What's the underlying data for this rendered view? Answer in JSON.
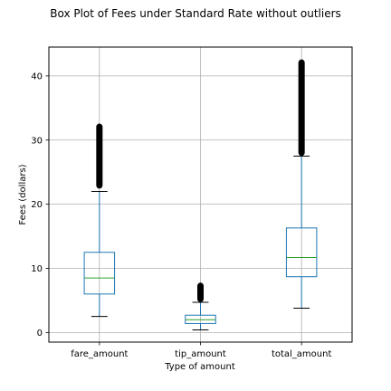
{
  "chart_data": {
    "type": "box",
    "title": "Box Plot of Fees under Standard Rate without outliers",
    "xlabel": "Type of amount",
    "ylabel": "Fees (dollars)",
    "ylim": [
      -1.5,
      44.5
    ],
    "yticks": [
      0,
      10,
      20,
      30,
      40
    ],
    "grid": true,
    "categories": [
      "fare_amount",
      "tip_amount",
      "total_amount"
    ],
    "boxes": [
      {
        "name": "fare_amount",
        "whisker_low": 2.5,
        "q1": 6.0,
        "median": 8.5,
        "q3": 12.5,
        "whisker_high": 22.0,
        "fliers_from": 22.5,
        "fliers_to": 32.5
      },
      {
        "name": "tip_amount",
        "whisker_low": 0.4,
        "q1": 1.4,
        "median": 2.0,
        "q3": 2.7,
        "whisker_high": 4.7,
        "fliers_from": 4.8,
        "fliers_to": 7.7
      },
      {
        "name": "total_amount",
        "whisker_low": 3.8,
        "q1": 8.7,
        "median": 11.7,
        "q3": 16.3,
        "whisker_high": 27.5,
        "fliers_from": 27.6,
        "fliers_to": 42.5
      }
    ],
    "colors": {
      "box": "#1f77b4",
      "median": "#2ca02c",
      "grid": "#b0b0b0",
      "whisker_cap": "#000000"
    }
  }
}
